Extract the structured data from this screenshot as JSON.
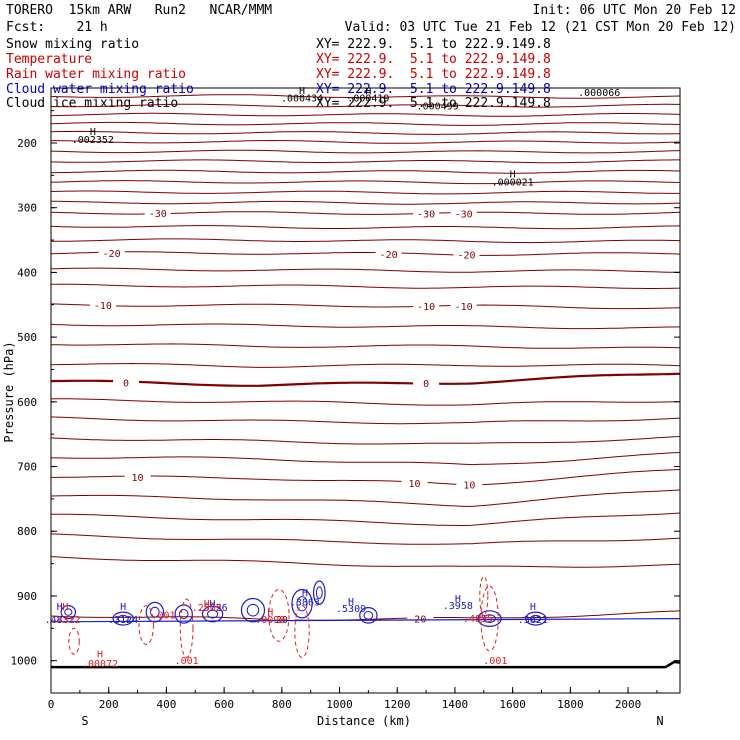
{
  "header": {
    "model": "TORERO  15km ARW   Run2   NCAR/MMM",
    "init": "Init: 06 UTC Mon 20 Feb 12",
    "fcst": "Fcst:    21 h",
    "valid": "Valid: 03 UTC Tue 21 Feb 12 (21 CST Mon 20 Feb 12)"
  },
  "fields": [
    {
      "name": "Snow mixing ratio",
      "xy": "XY= 222.9.  5.1 to 222.9.149.8",
      "color": "#000000"
    },
    {
      "name": "Temperature",
      "xy": "XY= 222.9.  5.1 to 222.9.149.8",
      "color": "#cc0000"
    },
    {
      "name": "Rain water mixing ratio",
      "xy": "XY= 222.9.  5.1 to 222.9.149.8",
      "color": "#cc0000"
    },
    {
      "name": "Cloud water mixing ratio",
      "xy": "XY= 222.9.  5.1 to 222.9.149.8",
      "color": "#0000cc"
    },
    {
      "name": "Cloud ice mixing ratio",
      "xy": "XY= 222.9.  5.1 to 222.9.149.8",
      "color": "#000000"
    }
  ],
  "colors": {
    "isotherm": "#800000",
    "rain": "#dd2222",
    "cloud": "#1a1acc",
    "axis": "#000000"
  },
  "chart_data": {
    "type": "contour-cross-section",
    "xlabel": "Distance (km)",
    "ylabel": "Pressure (hPa)",
    "xlim": [
      0,
      2180
    ],
    "ylim": [
      1050,
      115
    ],
    "x_ticks": [
      0,
      200,
      400,
      600,
      800,
      1000,
      1200,
      1400,
      1600,
      1800,
      2000
    ],
    "y_ticks": [
      200,
      300,
      400,
      500,
      600,
      700,
      800,
      900,
      1000
    ],
    "endpoint_left": "S",
    "endpoint_right": "N",
    "isotherms": [
      {
        "p": [
          128,
          127,
          129,
          129
        ],
        "label": ""
      },
      {
        "p": [
          142,
          142,
          143,
          142
        ],
        "label": ""
      },
      {
        "p": [
          156,
          156,
          157,
          156
        ],
        "label": ""
      },
      {
        "p": [
          170,
          170,
          171,
          170
        ],
        "label": ""
      },
      {
        "p": [
          184,
          184,
          185,
          184
        ],
        "label": ""
      },
      {
        "p": [
          198,
          198,
          199,
          198
        ],
        "label": ""
      },
      {
        "p": [
          213,
          213,
          214,
          213
        ],
        "label": ""
      },
      {
        "p": [
          228,
          228,
          229,
          228
        ],
        "label": ""
      },
      {
        "p": [
          244,
          244,
          245,
          244
        ],
        "label": ""
      },
      {
        "p": [
          260,
          260,
          261,
          260
        ],
        "label": ""
      },
      {
        "p": [
          276,
          276,
          277,
          276
        ],
        "label": ""
      },
      {
        "p": [
          292,
          292,
          293,
          292
        ],
        "label": ""
      },
      {
        "p": [
          308,
          308,
          309,
          308
        ],
        "label": "-30",
        "at": [
          370,
          1300,
          1430
        ]
      },
      {
        "p": [
          328,
          330,
          331,
          330
        ],
        "label": ""
      },
      {
        "p": [
          350,
          350,
          352,
          352
        ],
        "label": ""
      },
      {
        "p": [
          370,
          370,
          372,
          371
        ],
        "label": "-20",
        "at": [
          210,
          1170,
          1440
        ]
      },
      {
        "p": [
          395,
          396,
          398,
          398
        ],
        "label": ""
      },
      {
        "p": [
          420,
          421,
          423,
          423
        ],
        "label": ""
      },
      {
        "p": [
          450,
          451,
          452,
          455
        ],
        "label": "-10",
        "at": [
          180,
          1300,
          1430
        ]
      },
      {
        "p": [
          480,
          482,
          484,
          486
        ],
        "label": ""
      },
      {
        "p": [
          510,
          514,
          514,
          518
        ],
        "label": ""
      },
      {
        "p": [
          541,
          545,
          543,
          544
        ],
        "label": ""
      },
      {
        "p": [
          568,
          574,
          570,
          555
        ],
        "label": "0",
        "at": [
          260,
          1300
        ]
      },
      {
        "p": [
          597,
          600,
          604,
          598
        ],
        "label": ""
      },
      {
        "p": [
          625,
          630,
          633,
          625
        ],
        "label": ""
      },
      {
        "p": [
          656,
          661,
          666,
          655
        ],
        "label": ""
      },
      {
        "p": [
          685,
          688,
          698,
          680
        ],
        "label": ""
      },
      {
        "p": [
          715,
          718,
          728,
          705
        ],
        "label": "10",
        "at": [
          300,
          1260,
          1450
        ]
      },
      {
        "p": [
          745,
          750,
          760,
          735
        ],
        "label": ""
      },
      {
        "p": [
          775,
          782,
          790,
          770
        ],
        "label": ""
      },
      {
        "p": [
          806,
          814,
          820,
          810
        ],
        "label": ""
      },
      {
        "p": [
          840,
          848,
          856,
          852
        ],
        "label": ""
      },
      {
        "p": [
          930,
          936,
          935,
          925
        ],
        "label": "20",
        "at": [
          800,
          1280
        ]
      }
    ],
    "ground_pressure": 1010,
    "snow_labels": [
      {
        "text": "H",
        "x": 145,
        "p": 188
      },
      {
        "text": ".002352",
        "x": 145,
        "p": 200
      },
      {
        "text": "H",
        "x": 870,
        "p": 124
      },
      {
        "text": ".000434",
        "x": 870,
        "p": 136
      },
      {
        "text": "H",
        "x": 1100,
        "p": 125
      },
      {
        "text": ".000419",
        "x": 1100,
        "p": 136
      },
      {
        "text": ".000499",
        "x": 1340,
        "p": 148
      },
      {
        "text": ".000066",
        "x": 1900,
        "p": 127
      },
      {
        "text": "H",
        "x": 1600,
        "p": 253
      },
      {
        "text": ".000021",
        "x": 1600,
        "p": 266
      }
    ],
    "cloud_water_labels": [
      {
        "text": "H",
        "x": 30,
        "p": 922
      },
      {
        "text": ".4832",
        "x": 30,
        "p": 942
      },
      {
        "text": "H",
        "x": 250,
        "p": 922
      },
      {
        "text": ".3124",
        "x": 250,
        "p": 942
      },
      {
        "text": "H",
        "x": 560,
        "p": 917
      },
      {
        "text": ".5726",
        "x": 560,
        "p": 923
      },
      {
        "text": "H",
        "x": 880,
        "p": 900
      },
      {
        "text": ".3863",
        "x": 880,
        "p": 915
      },
      {
        "text": "H",
        "x": 1040,
        "p": 914
      },
      {
        "text": ".5309",
        "x": 1040,
        "p": 925
      },
      {
        "text": "H",
        "x": 1410,
        "p": 909
      },
      {
        "text": ".3958",
        "x": 1410,
        "p": 920
      },
      {
        "text": "H",
        "x": 1670,
        "p": 922
      },
      {
        "text": ".3821",
        "x": 1670,
        "p": 942
      }
    ],
    "rain_labels": [
      {
        "text": "H",
        "x": 50,
        "p": 922
      },
      {
        "text": ".4312",
        "x": 50,
        "p": 942
      },
      {
        "text": ".001",
        "x": 390,
        "p": 935
      },
      {
        "text": "H",
        "x": 540,
        "p": 917
      },
      {
        "text": ".2505",
        "x": 540,
        "p": 923
      },
      {
        "text": "H",
        "x": 760,
        "p": 930
      },
      {
        "text": ".0098",
        "x": 760,
        "p": 942
      },
      {
        "text": ".4855",
        "x": 1480,
        "p": 940
      },
      {
        "text": "H",
        "x": 170,
        "p": 995
      },
      {
        "text": ".00072",
        "x": 170,
        "p": 1010
      },
      {
        "text": ".001",
        "x": 470,
        "p": 1005
      },
      {
        "text": ".001",
        "x": 1540,
        "p": 1005
      }
    ]
  }
}
